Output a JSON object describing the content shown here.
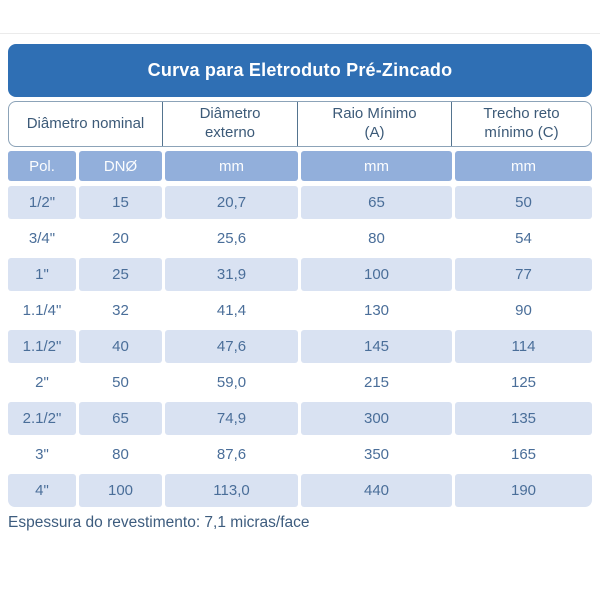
{
  "table": {
    "title": "Curva para Eletroduto Pré-Zincado",
    "header_cells": [
      {
        "line1": "Diâmetro nominal",
        "line2": ""
      },
      {
        "line1": "Diâmetro",
        "line2": "externo"
      },
      {
        "line1": "Raio Mínimo",
        "line2": "(A)"
      },
      {
        "line1": "Trecho reto",
        "line2": "mínimo (C)"
      }
    ],
    "unit_row": [
      "Pol.",
      "DNØ",
      "mm",
      "mm",
      "mm"
    ],
    "rows": [
      [
        "1/2\"",
        "15",
        "20,7",
        "65",
        "50"
      ],
      [
        "3/4\"",
        "20",
        "25,6",
        "80",
        "54"
      ],
      [
        "1\"",
        "25",
        "31,9",
        "100",
        "77"
      ],
      [
        "1.1/4\"",
        "32",
        "41,4",
        "130",
        "90"
      ],
      [
        "1.1/2\"",
        "40",
        "47,6",
        "145",
        "114"
      ],
      [
        "2\"",
        "50",
        "59,0",
        "215",
        "125"
      ],
      [
        "2.1/2\"",
        "65",
        "74,9",
        "300",
        "135"
      ],
      [
        "3\"",
        "80",
        "87,6",
        "350",
        "165"
      ],
      [
        "4\"",
        "100",
        "113,0",
        "440",
        "190"
      ]
    ]
  },
  "footer": {
    "note": "Espessura do revestimento: 7,1 micras/face"
  },
  "colors": {
    "title_bar_bg": "#2F6FB4",
    "unit_row_bg": "#92AFDB",
    "stripe_bg": "#D9E2F2",
    "data_text": "#4A6E99",
    "header_text": "#3C5A78",
    "header_border": "#8CA3B8"
  }
}
